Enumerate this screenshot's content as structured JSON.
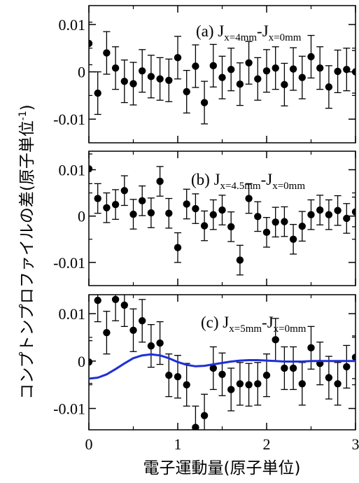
{
  "figure": {
    "ylabel": "コンプトンプロファイルの差(原子単位",
    "ylabel_sup": "-1",
    "ylabel_close": ")",
    "xlabel": "電子運動量(原子単位)"
  },
  "chart_data": [
    {
      "type": "scatter",
      "panel_label": {
        "prefix": "(a) J",
        "sub1": "x=4mm",
        "mid": "-J",
        "sub2": "x=0mm"
      },
      "xlim": [
        0,
        3
      ],
      "ylim": [
        -0.015,
        0.014
      ],
      "yticks": [
        0.01,
        0,
        -0.01
      ],
      "ytick_labels": [
        "0.01",
        "0",
        "-0.01"
      ],
      "xticks": [
        0,
        1,
        2,
        3
      ],
      "xtick_labels": [],
      "grid": false,
      "series": [
        {
          "marker": "filled-circle",
          "color": "#000000",
          "x": [
            0.0,
            0.1,
            0.2,
            0.3,
            0.4,
            0.5,
            0.6,
            0.7,
            0.8,
            0.9,
            1.0,
            1.1,
            1.2,
            1.3,
            1.4,
            1.5,
            1.6,
            1.7,
            1.8,
            1.9,
            2.0,
            2.1,
            2.2,
            2.3,
            2.4,
            2.5,
            2.6,
            2.7,
            2.8,
            2.9,
            3.0
          ],
          "y": [
            0.006,
            -0.0045,
            0.004,
            0.0008,
            -0.002,
            -0.0025,
            0.0002,
            -0.001,
            -0.0015,
            -0.0018,
            0.003,
            -0.0042,
            0.0012,
            -0.0065,
            0.0013,
            -0.0012,
            0.0005,
            -0.0026,
            0.0019,
            -0.0015,
            0.0002,
            0.0008,
            -0.0027,
            0.0006,
            -0.0012,
            0.0032,
            0.0008,
            -0.0032,
            0.0001,
            0.0005,
            0.0
          ],
          "yerr": [
            0.0045,
            0.0045,
            0.0045,
            0.0045,
            0.0045,
            0.0045,
            0.0045,
            0.0045,
            0.0045,
            0.0045,
            0.0045,
            0.0045,
            0.0045,
            0.0045,
            0.0045,
            0.0045,
            0.0045,
            0.0045,
            0.0045,
            0.0045,
            0.0045,
            0.0045,
            0.0045,
            0.0045,
            0.0045,
            0.0045,
            0.0045,
            0.0045,
            0.0045,
            0.0045,
            0.0045
          ]
        }
      ]
    },
    {
      "type": "scatter",
      "panel_label": {
        "prefix": "(b) J",
        "sub1": "x=4.5mm",
        "mid": "-J",
        "sub2": "x=0mm"
      },
      "xlim": [
        0,
        3
      ],
      "ylim": [
        -0.015,
        0.014
      ],
      "yticks": [
        0.01,
        0,
        -0.01
      ],
      "ytick_labels": [
        "0.01",
        "0",
        "-0.01"
      ],
      "xticks": [
        0,
        1,
        2,
        3
      ],
      "xtick_labels": [],
      "grid": false,
      "series": [
        {
          "marker": "filled-circle",
          "color": "#000000",
          "x": [
            0.0,
            0.1,
            0.2,
            0.3,
            0.4,
            0.5,
            0.6,
            0.7,
            0.8,
            0.9,
            1.0,
            1.1,
            1.2,
            1.3,
            1.4,
            1.5,
            1.6,
            1.7,
            1.8,
            1.9,
            2.0,
            2.1,
            2.2,
            2.3,
            2.4,
            2.5,
            2.6,
            2.7,
            2.8,
            2.9,
            3.0
          ],
          "y": [
            0.0102,
            0.0038,
            0.0018,
            0.0025,
            0.0055,
            0.0004,
            0.0033,
            0.0007,
            0.0075,
            0.0006,
            -0.0068,
            0.0026,
            0.0016,
            -0.0021,
            0.0003,
            0.0013,
            -0.0023,
            -0.0095,
            0.0038,
            -0.0001,
            -0.0035,
            -0.0013,
            -0.0012,
            -0.005,
            -0.0022,
            0.0003,
            0.0013,
            0.0003,
            0.0012,
            -0.0005,
            0.0009
          ],
          "yerr": [
            0.0032,
            0.0032,
            0.0032,
            0.0032,
            0.0032,
            0.0032,
            0.0032,
            0.0032,
            0.0032,
            0.0032,
            0.0032,
            0.0032,
            0.0032,
            0.0032,
            0.0032,
            0.0032,
            0.0032,
            0.0032,
            0.0032,
            0.0032,
            0.0032,
            0.0032,
            0.0032,
            0.0032,
            0.0032,
            0.0032,
            0.0032,
            0.0032,
            0.0032,
            0.0032,
            0.0032
          ]
        }
      ]
    },
    {
      "type": "scatter",
      "panel_label": {
        "prefix": "(c) J",
        "sub1": "x=5mm",
        "mid": "-J",
        "sub2": "x=0mm"
      },
      "xlim": [
        0,
        3
      ],
      "ylim": [
        -0.0145,
        0.014
      ],
      "yticks": [
        0.01,
        0,
        -0.01
      ],
      "ytick_labels": [
        "0.01",
        "0",
        "-0.01"
      ],
      "xticks": [
        0,
        1,
        2,
        3
      ],
      "xtick_labels": [
        "0",
        "1",
        "2",
        "3"
      ],
      "grid": false,
      "series": [
        {
          "marker": "filled-circle",
          "color": "#000000",
          "x": [
            0.0,
            0.1,
            0.2,
            0.3,
            0.4,
            0.5,
            0.6,
            0.7,
            0.8,
            0.9,
            1.0,
            1.1,
            1.2,
            1.3,
            1.4,
            1.5,
            1.6,
            1.7,
            1.8,
            1.9,
            2.0,
            2.1,
            2.2,
            2.3,
            2.4,
            2.5,
            2.6,
            2.7,
            2.8,
            2.9,
            3.0
          ],
          "y": [
            -0.0002,
            0.0128,
            0.006,
            0.013,
            0.0118,
            0.0065,
            0.0085,
            0.0032,
            0.0038,
            -0.003,
            -0.0033,
            -0.005,
            -0.014,
            -0.0115,
            -0.0015,
            -0.0028,
            -0.006,
            -0.0048,
            -0.005,
            -0.0048,
            -0.003,
            0.0045,
            -0.0015,
            -0.0015,
            -0.0048,
            0.0028,
            -0.0005,
            -0.0035,
            -0.0048,
            -0.0012,
            0.0008
          ],
          "yerr": [
            0.0045,
            0.0045,
            0.0045,
            0.0045,
            0.0045,
            0.0045,
            0.0045,
            0.0045,
            0.0045,
            0.0045,
            0.0045,
            0.0045,
            0.0045,
            0.0045,
            0.0045,
            0.0045,
            0.0045,
            0.0045,
            0.0045,
            0.0045,
            0.0045,
            0.0045,
            0.0045,
            0.0045,
            0.0045,
            0.0045,
            0.0045,
            0.0045,
            0.0045,
            0.0045,
            0.0045
          ]
        },
        {
          "type": "line",
          "color": "#1f2fd6",
          "x": [
            0.0,
            0.1,
            0.2,
            0.3,
            0.4,
            0.5,
            0.6,
            0.7,
            0.8,
            0.9,
            1.0,
            1.1,
            1.2,
            1.3,
            1.4,
            1.5,
            1.6,
            1.7,
            1.8,
            1.9,
            2.0,
            2.1,
            2.2,
            2.3,
            2.4,
            2.5,
            2.6,
            2.7,
            2.8,
            2.9,
            3.0
          ],
          "y": [
            -0.0037,
            -0.0035,
            -0.0028,
            -0.0017,
            -0.0005,
            0.0006,
            0.0012,
            0.0014,
            0.0012,
            0.0006,
            -0.0002,
            -0.0008,
            -0.0011,
            -0.001,
            -0.0007,
            -0.0004,
            -0.0001,
            0.0001,
            0.0002,
            0.0002,
            0.0001,
            0.0,
            -0.0001,
            -0.0001,
            -0.0001,
            0.0,
            0.0,
            0.0,
            0.0,
            0.0,
            0.0
          ]
        }
      ]
    }
  ]
}
